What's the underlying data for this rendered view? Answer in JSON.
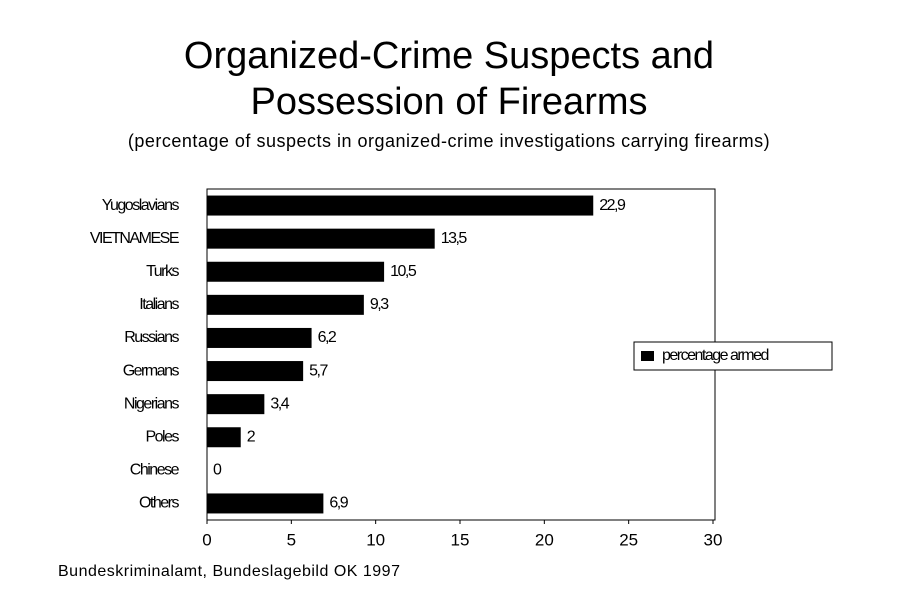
{
  "chart_data": {
    "type": "bar",
    "orientation": "horizontal",
    "title": [
      "Organized-Crime Suspects and",
      "Possession of Firearms"
    ],
    "subtitle": "(percentage of suspects in organized-crime investigations carrying firearms)",
    "source": "Bundeskriminalamt, Bundeslagebild OK 1997",
    "categories": [
      "Yugoslavians",
      "VIETNAMESE",
      "Turks",
      "Italians",
      "Russians",
      "Germans",
      "Nigerians",
      "Poles",
      "Chinese",
      "Others"
    ],
    "series": [
      {
        "name": "percentage armed",
        "color": "#000000",
        "values": [
          22.9,
          13.5,
          10.5,
          9.3,
          6.2,
          5.7,
          3.4,
          2,
          0,
          6.9
        ],
        "value_labels": [
          "22,9",
          "13,5",
          "10,5",
          "9,3",
          "6,2",
          "5,7",
          "3,4",
          "2",
          "0",
          "6,9"
        ]
      }
    ],
    "xlim": [
      0,
      30
    ],
    "xticks": [
      0,
      5,
      10,
      15,
      20,
      25,
      30
    ],
    "grid": false,
    "legend": "right"
  }
}
